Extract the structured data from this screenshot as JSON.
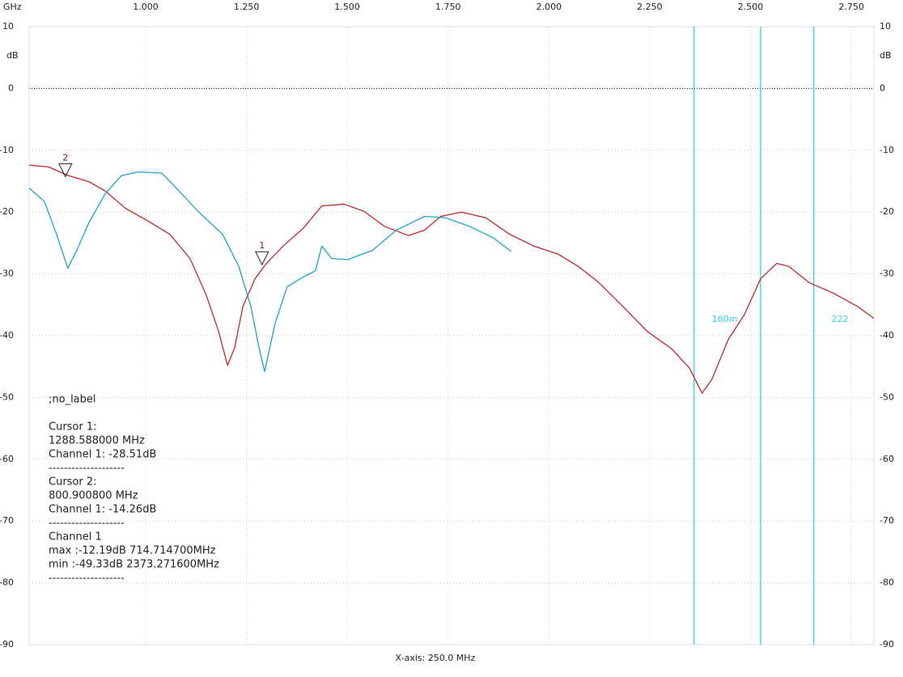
{
  "chart_data": {
    "type": "line",
    "x_unit": "GHz",
    "y_unit": "dB",
    "x_axis_label": "X-axis: 250.0 MHz",
    "xlim": [
      0.711,
      2.806
    ],
    "ylim": [
      -90,
      10
    ],
    "xticks": [
      {
        "value": 1,
        "label": "1.000"
      },
      {
        "value": 1.25,
        "label": "1.250"
      },
      {
        "value": 1.5,
        "label": "1.500"
      },
      {
        "value": 1.75,
        "label": "1.750"
      },
      {
        "value": 2,
        "label": "2.000"
      },
      {
        "value": 2.25,
        "label": "2.250"
      },
      {
        "value": 2.5,
        "label": "2.500"
      },
      {
        "value": 2.75,
        "label": "2.750"
      }
    ],
    "yticks": [
      10,
      0,
      -10,
      -20,
      -30,
      -40,
      -50,
      -60,
      -70,
      -80,
      -90
    ],
    "grid": true,
    "series": [
      {
        "color": "#c0282a",
        "x": [
          0.711,
          0.759,
          0.809,
          0.86,
          0.9,
          0.95,
          1.01,
          1.06,
          1.11,
          1.15,
          1.181,
          1.203,
          1.221,
          1.241,
          1.271,
          1.297,
          1.341,
          1.391,
          1.437,
          1.492,
          1.542,
          1.592,
          1.652,
          1.692,
          1.732,
          1.783,
          1.843,
          1.903,
          1.963,
          2.023,
          2.073,
          2.124,
          2.184,
          2.244,
          2.304,
          2.348,
          2.38,
          2.404,
          2.445,
          2.485,
          2.525,
          2.565,
          2.595,
          2.645,
          2.705,
          2.766,
          2.806
        ],
        "values": [
          -12.4,
          -12.7,
          -14.1,
          -15.1,
          -16.6,
          -19.4,
          -21.6,
          -23.6,
          -27.5,
          -33.4,
          -39.3,
          -44.8,
          -41.9,
          -35.3,
          -30.8,
          -28.5,
          -25.5,
          -22.6,
          -19.0,
          -18.7,
          -19.9,
          -22.3,
          -23.8,
          -22.9,
          -20.7,
          -20.0,
          -20.9,
          -23.6,
          -25.5,
          -26.8,
          -28.8,
          -31.4,
          -35.3,
          -39.3,
          -42.1,
          -45.2,
          -49.3,
          -47.1,
          -40.6,
          -36.6,
          -30.8,
          -28.3,
          -28.8,
          -31.4,
          -33.1,
          -35.3,
          -37.2
        ]
      },
      {
        "color": "#1ca3c8",
        "x": [
          0.711,
          0.749,
          0.779,
          0.807,
          0.829,
          0.86,
          0.9,
          0.94,
          0.98,
          1.04,
          1.08,
          1.13,
          1.191,
          1.231,
          1.261,
          1.281,
          1.295,
          1.321,
          1.351,
          1.391,
          1.421,
          1.437,
          1.461,
          1.501,
          1.562,
          1.622,
          1.692,
          1.742,
          1.803,
          1.863,
          1.907
        ],
        "values": [
          -16.1,
          -18.3,
          -23.6,
          -29.1,
          -26.2,
          -21.6,
          -17.0,
          -14.1,
          -13.5,
          -13.7,
          -16.4,
          -19.9,
          -23.6,
          -28.8,
          -35.3,
          -41.9,
          -45.8,
          -38.0,
          -32.1,
          -30.5,
          -29.5,
          -25.5,
          -27.5,
          -27.7,
          -26.2,
          -22.9,
          -20.7,
          -20.9,
          -22.3,
          -24.2,
          -26.4
        ]
      }
    ],
    "markers": [
      {
        "label": "1",
        "x": 1.2886,
        "y": -28.51
      },
      {
        "label": "2",
        "x": 0.8009,
        "y": -14.26
      }
    ],
    "vlines": [
      {
        "x": 2.36,
        "label": "160m",
        "color": "#2bd6e0"
      },
      {
        "x": 2.525,
        "color": "#2bd6e0"
      },
      {
        "x": 2.657,
        "label": "222",
        "color": "#2bd6e0"
      }
    ],
    "annotations": [
      [
        ";no_label"
      ],
      [
        "Cursor 1:",
        "1288.588000 MHz",
        "Channel 1: -28.51dB",
        "--------------------",
        "Cursor 2:",
        "800.900800 MHz",
        "Channel 1: -14.26dB",
        "--------------------",
        "Channel 1",
        "max :-12.19dB 714.714700MHz",
        "min :-49.33dB 2373.271600MHz",
        "--------------------"
      ]
    ]
  }
}
